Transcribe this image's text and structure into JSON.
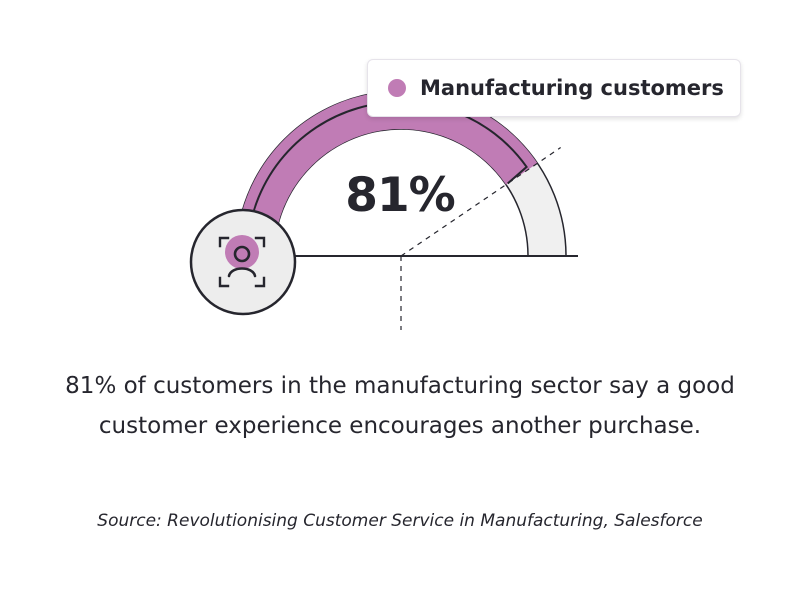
{
  "chart_data": {
    "type": "gauge",
    "value": 81,
    "max": 100,
    "unit": "%",
    "value_label": "81%",
    "legend": [
      "Manufacturing customers"
    ],
    "series": [
      {
        "name": "Manufacturing customers",
        "value": 81,
        "color": "#c07cb5"
      }
    ],
    "track_color": "#f0f0f0",
    "description": "81% of customers in the manufacturing sector say a good customer experience encourages another purchase.",
    "source": "Source: Revolutionising Customer Service in Manufacturing, Salesforce"
  },
  "icon": {
    "name": "user-focus-icon"
  },
  "colors": {
    "accent": "#c07cb5",
    "ink": "#26262e",
    "track": "#f0f0f0",
    "icon_bg": "#ededed"
  }
}
